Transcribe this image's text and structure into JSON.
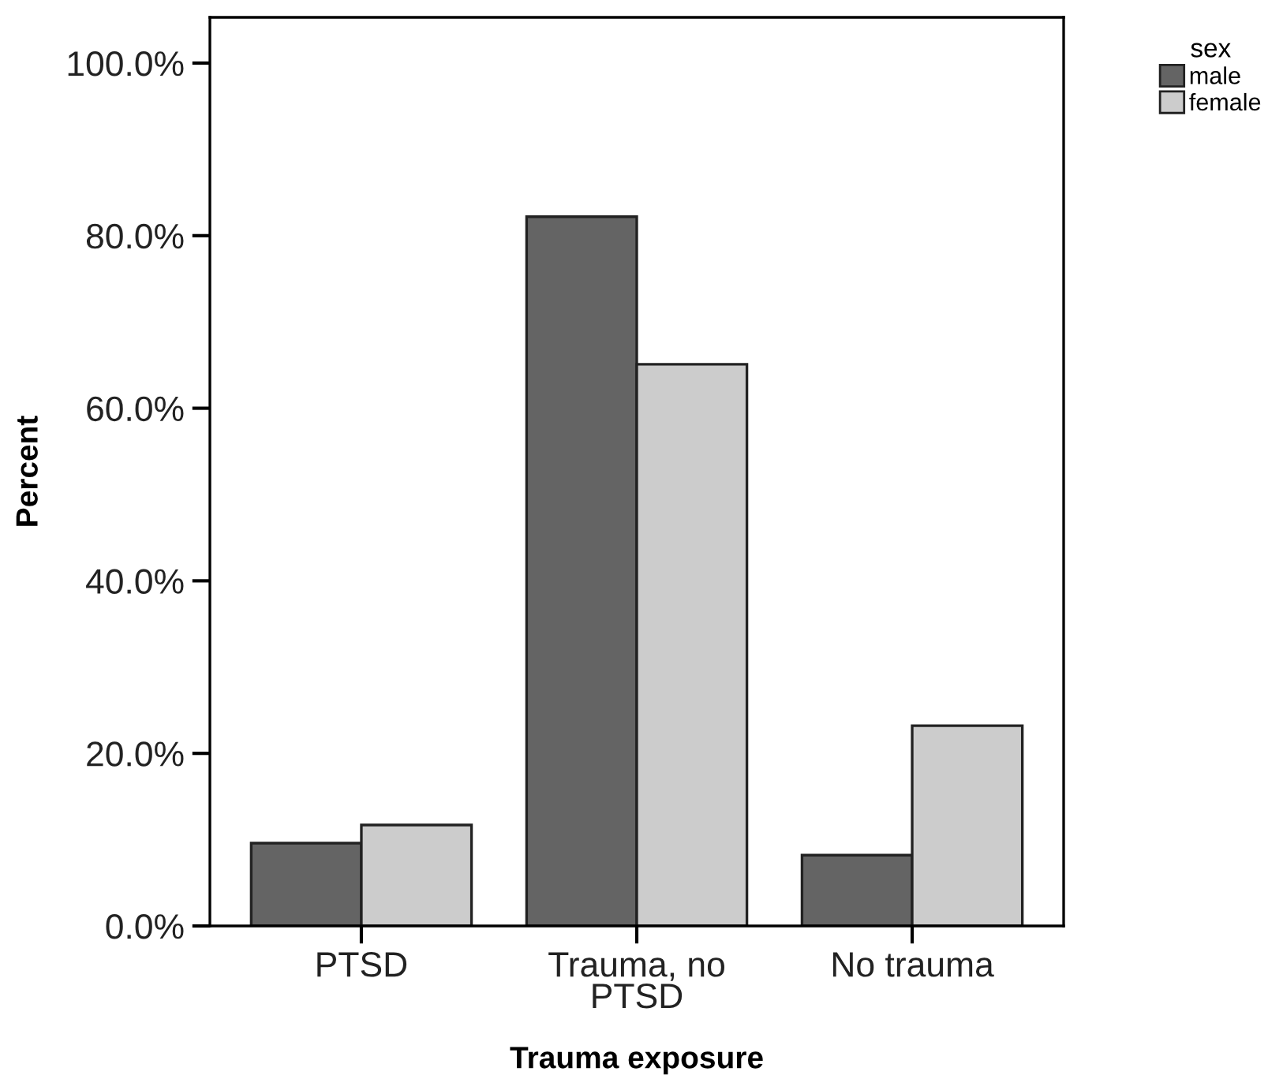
{
  "chart_data": {
    "type": "bar",
    "xlabel": "Trauma exposure",
    "ylabel": "Percent",
    "legend_title": "sex",
    "categories": [
      "PTSD",
      "Trauma, no\nPTSD",
      "No trauma"
    ],
    "series": [
      {
        "name": "male",
        "color": "#646464",
        "values": [
          9.6,
          82.2,
          8.2
        ]
      },
      {
        "name": "female",
        "color": "#cccccc",
        "values": [
          11.7,
          65.1,
          23.2
        ]
      }
    ],
    "ylim": [
      0,
      105.3
    ],
    "yticks": [
      {
        "value": 0,
        "label": "0.0%"
      },
      {
        "value": 20,
        "label": "20.0%"
      },
      {
        "value": 40,
        "label": "40.0%"
      },
      {
        "value": 60,
        "label": "60.0%"
      },
      {
        "value": 80,
        "label": "80.0%"
      },
      {
        "value": 100,
        "label": "100.0%"
      }
    ],
    "grid": false,
    "legend": "top right"
  }
}
